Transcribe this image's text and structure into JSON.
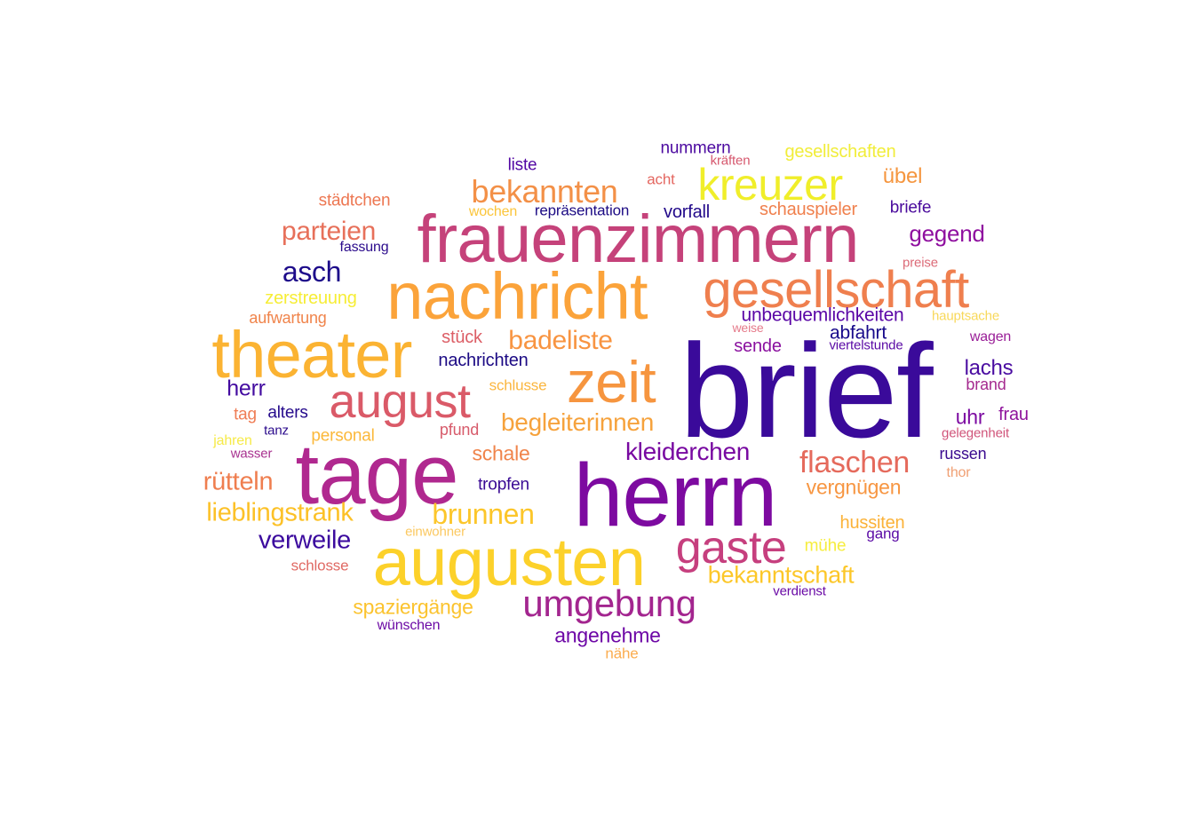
{
  "words": [
    {
      "text": "brief",
      "color": "#3a0a9a"
    },
    {
      "text": "herrn",
      "color": "#7d0aa0"
    },
    {
      "text": "tage",
      "color": "#b0288f"
    },
    {
      "text": "augusten",
      "color": "#fcd12a"
    },
    {
      "text": "frauenzimmern",
      "color": "#c5427a"
    },
    {
      "text": "nachricht",
      "color": "#fba33a"
    },
    {
      "text": "theater",
      "color": "#fbb332"
    },
    {
      "text": "gesellschaft",
      "color": "#ef7f4e"
    },
    {
      "text": "zeit",
      "color": "#f6953f"
    },
    {
      "text": "august",
      "color": "#da5a68"
    },
    {
      "text": "kreuzer",
      "color": "#f0ee2a"
    },
    {
      "text": "gaste",
      "color": "#c63f7e"
    },
    {
      "text": "umgebung",
      "color": "#a3258f"
    },
    {
      "text": "bekannten",
      "color": "#f39047"
    },
    {
      "text": "flaschen",
      "color": "#e56a5c"
    },
    {
      "text": "brunnen",
      "color": "#fcc62a"
    },
    {
      "text": "badeliste",
      "color": "#f89441"
    },
    {
      "text": "begleiterinnen",
      "color": "#f6a23c"
    },
    {
      "text": "kleiderchen",
      "color": "#7809a1"
    },
    {
      "text": "lieblingstrank",
      "color": "#fcc127"
    },
    {
      "text": "parteien",
      "color": "#e7705a"
    },
    {
      "text": "asch",
      "color": "#1d0b8a"
    },
    {
      "text": "verweile",
      "color": "#3b0a9e"
    },
    {
      "text": "rütteln",
      "color": "#ef7e4f"
    },
    {
      "text": "bekanntschaft",
      "color": "#fcc729"
    },
    {
      "text": "spaziergänge",
      "color": "#fbc32e"
    },
    {
      "text": "angenehme",
      "color": "#6d07a6"
    },
    {
      "text": "vergnügen",
      "color": "#f79642"
    },
    {
      "text": "schale",
      "color": "#f0844b"
    },
    {
      "text": "gegend",
      "color": "#8f0f9f"
    },
    {
      "text": "unbequemlichkeiten",
      "color": "#5a06a6"
    },
    {
      "text": "nachrichten",
      "color": "#1c0a84"
    },
    {
      "text": "herr",
      "color": "#430ba0"
    },
    {
      "text": "lachs",
      "color": "#4a0ca1"
    },
    {
      "text": "abfahrt",
      "color": "#17098a"
    },
    {
      "text": "übel",
      "color": "#f5963f"
    },
    {
      "text": "stück",
      "color": "#dc5e66"
    },
    {
      "text": "zerstreuung",
      "color": "#f6ed35"
    },
    {
      "text": "sende",
      "color": "#8a109f"
    },
    {
      "text": "uhr",
      "color": "#7c0aa1"
    },
    {
      "text": "schauspieler",
      "color": "#f0804d"
    },
    {
      "text": "frau",
      "color": "#8f139c"
    },
    {
      "text": "städtchen",
      "color": "#ed7752"
    },
    {
      "text": "gesellschaften",
      "color": "#f1ed3a"
    },
    {
      "text": "vorfall",
      "color": "#22098a"
    },
    {
      "text": "briefe",
      "color": "#4a0a9c"
    },
    {
      "text": "alters",
      "color": "#250a8c"
    },
    {
      "text": "russen",
      "color": "#3a0a8f"
    },
    {
      "text": "tropfen",
      "color": "#3a0a94"
    },
    {
      "text": "personal",
      "color": "#fbb83a"
    },
    {
      "text": "hussiten",
      "color": "#fbb238"
    },
    {
      "text": "nummern",
      "color": "#4c0aa0"
    },
    {
      "text": "liste",
      "color": "#5206a3"
    },
    {
      "text": "tag",
      "color": "#ef7d55"
    },
    {
      "text": "aufwartung",
      "color": "#f0844b"
    },
    {
      "text": "pfund",
      "color": "#d75b6b"
    },
    {
      "text": "mühe",
      "color": "#f6ed3e"
    },
    {
      "text": "brand",
      "color": "#a52b8f"
    },
    {
      "text": "repräsentation",
      "color": "#1c0b84"
    },
    {
      "text": "wagen",
      "color": "#9a1f98"
    },
    {
      "text": "schlusse",
      "color": "#fbb63f"
    },
    {
      "text": "schlosse",
      "color": "#e06a64"
    },
    {
      "text": "gang",
      "color": "#5a0aa5"
    },
    {
      "text": "acht",
      "color": "#e46760"
    },
    {
      "text": "wochen",
      "color": "#fbc53a"
    },
    {
      "text": "fassung",
      "color": "#2b0b8c"
    },
    {
      "text": "hauptsache",
      "color": "#f8d85a"
    },
    {
      "text": "viertelstunde",
      "color": "#5a0aa5"
    },
    {
      "text": "jahren",
      "color": "#f6ea48"
    },
    {
      "text": "wünschen",
      "color": "#6c0aa5"
    },
    {
      "text": "kräften",
      "color": "#d6586e"
    },
    {
      "text": "preise",
      "color": "#dc6b78"
    },
    {
      "text": "gelegenheit",
      "color": "#d0547a"
    },
    {
      "text": "weise",
      "color": "#e57a8a"
    },
    {
      "text": "verdienst",
      "color": "#6a0aa6"
    },
    {
      "text": "thor",
      "color": "#f0a074"
    },
    {
      "text": "tanz",
      "color": "#2b0b8c"
    },
    {
      "text": "wasser",
      "color": "#a83290"
    },
    {
      "text": "einwohner",
      "color": "#fbc860"
    },
    {
      "text": "nähe",
      "color": "#fbad50"
    }
  ]
}
